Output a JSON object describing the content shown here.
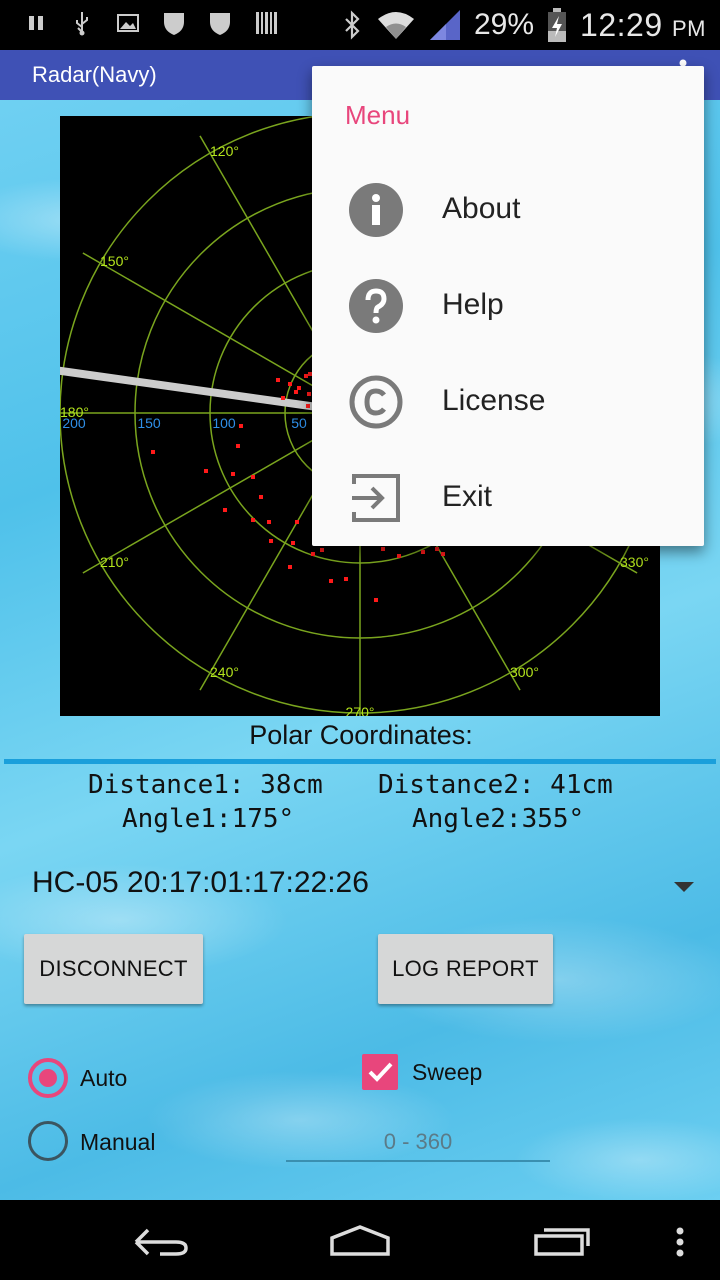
{
  "status_bar": {
    "battery_percent": "29%",
    "time": "12:29",
    "ampm": "PM",
    "icons": [
      "pause-icon",
      "usb-icon",
      "image-icon",
      "shield-icon",
      "shield-icon",
      "barcode-icon",
      "bluetooth-icon",
      "wifi-icon",
      "signal-icon",
      "battery-charging-icon"
    ]
  },
  "app_bar": {
    "title": "Radar(Navy)"
  },
  "radar": {
    "angle_labels": [
      "120°",
      "150°",
      "180°",
      "210°",
      "240°",
      "270°",
      "300°",
      "330°"
    ],
    "distance_labels": [
      "200",
      "150",
      "100",
      "50"
    ],
    "grid_color": "#7aa51e",
    "angle_label_color": "#b5e61d",
    "distance_label_color": "#2f8fe8",
    "point_color": "#ff1a1a",
    "sweep_color": "#cccccc"
  },
  "readout": {
    "title": "Polar Coordinates:",
    "distance1": "Distance1: 38cm",
    "distance2": "Distance2: 41cm",
    "angle1": "Angle1:175°",
    "angle2": "Angle2:355°"
  },
  "device": {
    "selected": "HC-05 20:17:01:17:22:26"
  },
  "buttons": {
    "disconnect": "DISCONNECT",
    "log_report": "LOG REPORT"
  },
  "mode": {
    "auto_label": "Auto",
    "manual_label": "Manual",
    "selected": "Auto"
  },
  "sweep": {
    "label": "Sweep",
    "checked": true
  },
  "angle_input": {
    "placeholder": "0 - 360",
    "value": ""
  },
  "menu": {
    "title": "Menu",
    "items": [
      {
        "label": "About",
        "icon": "info-icon"
      },
      {
        "label": "Help",
        "icon": "help-icon"
      },
      {
        "label": "License",
        "icon": "copyright-icon"
      },
      {
        "label": "Exit",
        "icon": "exit-icon"
      }
    ]
  },
  "colors": {
    "accent": "#e8467c",
    "app_bar": "#3f51b5",
    "divider": "#1a9fdb"
  }
}
